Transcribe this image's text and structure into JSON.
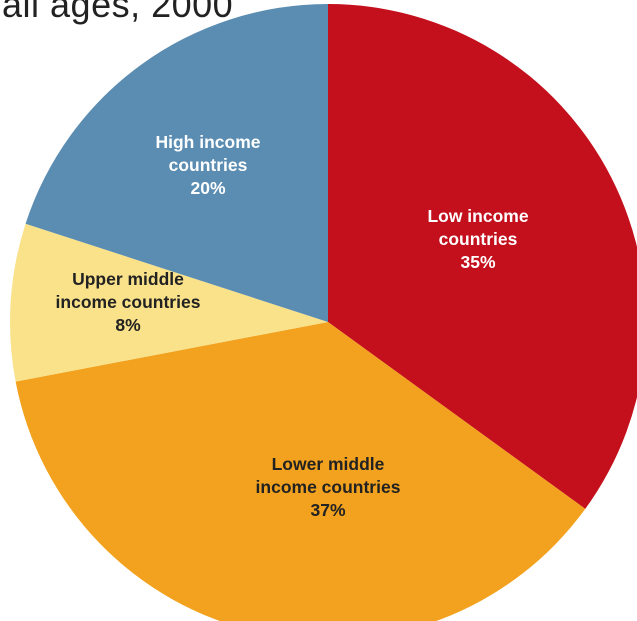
{
  "caption_fragment": "all ages, 2000",
  "chart_data": {
    "type": "pie",
    "title": "",
    "start_angle_deg": 0,
    "direction": "clockwise",
    "slices": [
      {
        "label_lines": [
          "Low income",
          "countries",
          "35%"
        ],
        "category": "Low income countries",
        "value": 35,
        "color": "#c4101c",
        "label_color": "#ffffff"
      },
      {
        "label_lines": [
          "Lower middle",
          "income countries",
          "37%"
        ],
        "category": "Lower middle income countries",
        "value": 37,
        "color": "#f2a21e",
        "label_color": "#222222"
      },
      {
        "label_lines": [
          "Upper middle",
          "income countries",
          "8%"
        ],
        "category": "Upper middle income countries",
        "value": 8,
        "color": "#fae28a",
        "label_color": "#222222"
      },
      {
        "label_lines": [
          "High income",
          "countries",
          "20%"
        ],
        "category": "High income countries",
        "value": 20,
        "color": "#5b8db2",
        "label_color": "#ffffff"
      }
    ]
  }
}
